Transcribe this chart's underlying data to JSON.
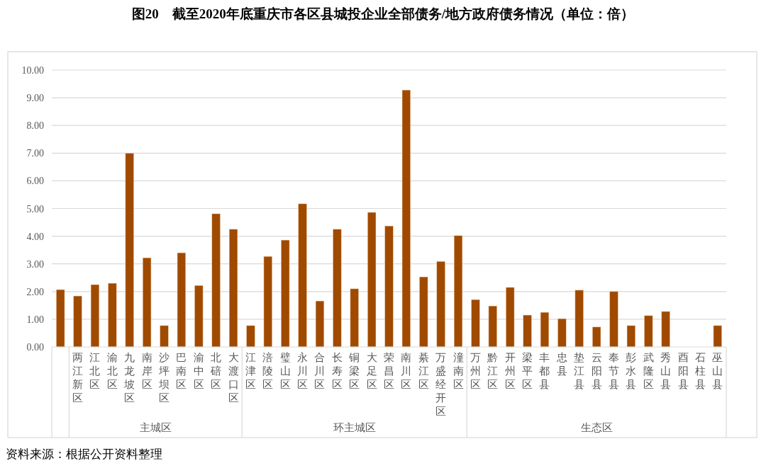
{
  "chart_data": {
    "type": "bar",
    "title": "图20　截至2020年底重庆市各区县城投企业全部债务/地方政府债务情况（单位：倍）",
    "categories": [
      null,
      "两江新区",
      "江北区",
      "渝北区",
      "九龙坡区",
      "南岸区",
      "沙坪坝区",
      "巴南区",
      "渝中区",
      "北碚区",
      "大渡口区",
      "江津区",
      "涪陵区",
      "璧山区",
      "永川区",
      "合川区",
      "长寿区",
      "铜梁区",
      "大足区",
      "荣昌区",
      "南川区",
      "綦江区",
      "万盛经开区",
      "潼南区",
      "万州区",
      "黔江区",
      "开州区",
      "梁平区",
      "丰都县",
      "忠县",
      "垫江县",
      "云阳县",
      "奉节县",
      "彭水县",
      "武隆区",
      "秀山县",
      "酉阳县",
      "石柱县",
      "巫山县"
    ],
    "values": [
      2.07,
      1.84,
      2.25,
      2.3,
      7.0,
      3.22,
      0.77,
      3.4,
      2.22,
      4.81,
      4.25,
      0.77,
      3.27,
      3.86,
      5.17,
      1.66,
      4.25,
      2.1,
      4.86,
      4.37,
      9.28,
      2.53,
      3.09,
      4.02,
      1.71,
      1.48,
      2.15,
      1.15,
      1.25,
      1.02,
      2.05,
      0.72,
      2.0,
      0.77,
      1.13,
      1.28,
      null,
      null,
      0.77
    ],
    "color": "#a04a00",
    "ylim": [
      0,
      10
    ],
    "yticks": [
      {
        "value": 0,
        "label": "0.00"
      },
      {
        "value": 1,
        "label": "1.00"
      },
      {
        "value": 2,
        "label": "2.00"
      },
      {
        "value": 3,
        "label": "3.00"
      },
      {
        "value": 4,
        "label": "4.00"
      },
      {
        "value": 5,
        "label": "5.00"
      },
      {
        "value": 6,
        "label": "6.00"
      },
      {
        "value": 7,
        "label": "7.00"
      },
      {
        "value": 8,
        "label": "8.00"
      },
      {
        "value": 9,
        "label": "9.00"
      },
      {
        "value": 10,
        "label": "10.00"
      }
    ],
    "grid": "y",
    "annotations": [
      "主城区",
      "环主城区",
      "生态区",
      "资料来源：根据公开资料整理"
    ]
  }
}
